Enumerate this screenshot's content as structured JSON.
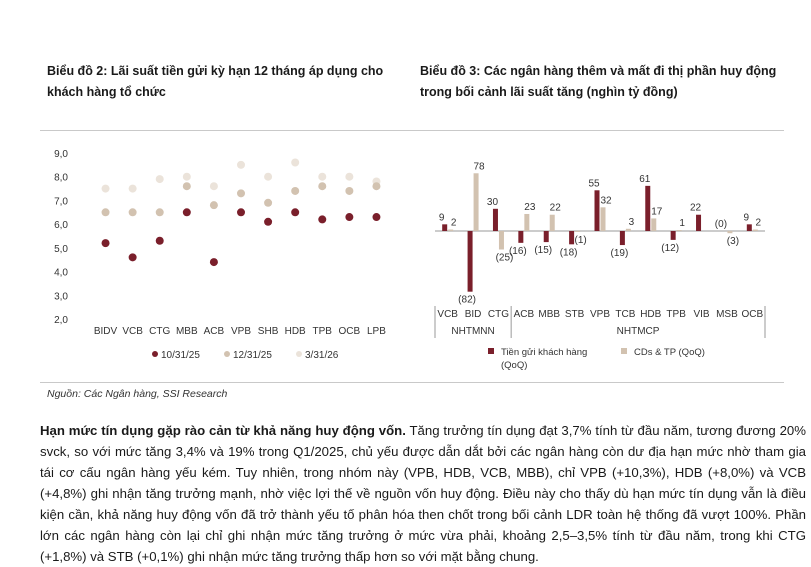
{
  "chart_data": [
    {
      "type": "scatter",
      "title": "Biểu đồ 2: Lãi suất tiền gửi kỳ hạn 12 tháng áp dụng cho khách hàng tổ chức",
      "categories": [
        "BIDV",
        "VCB",
        "CTG",
        "MBB",
        "ACB",
        "VPB",
        "SHB",
        "HDB",
        "TPB",
        "OCB",
        "LPB"
      ],
      "y_ticks": [
        "9,0",
        "8,0",
        "7,0",
        "6,0",
        "5,0",
        "4,0",
        "3,0",
        "2,0"
      ],
      "ylim": [
        2,
        9
      ],
      "legend_position": "bottom",
      "series": [
        {
          "name": "10/31/25",
          "color": "#7a1f2b",
          "values": [
            5.2,
            4.6,
            5.3,
            6.5,
            4.4,
            6.5,
            6.1,
            6.5,
            6.2,
            6.3,
            6.3
          ]
        },
        {
          "name": "12/31/25",
          "color": "#d2c2b0",
          "values": [
            6.5,
            6.5,
            6.5,
            7.6,
            6.8,
            7.3,
            6.9,
            7.4,
            7.6,
            7.4,
            7.6
          ]
        },
        {
          "name": "3/31/26",
          "color": "#ebe3da",
          "values": [
            7.5,
            7.5,
            7.9,
            8.0,
            7.6,
            8.5,
            8.0,
            8.6,
            8.0,
            8.0,
            7.8
          ]
        }
      ]
    },
    {
      "type": "bar",
      "title": "Biểu đồ 3: Các ngân hàng thêm và mất đi thị phần huy động trong bối cảnh lãi suất tăng (nghìn tỷ đồng)",
      "categories": [
        "VCB",
        "BID",
        "CTG",
        "ACB",
        "MBB",
        "STB",
        "VPB",
        "TCB",
        "HDB",
        "TPB",
        "VIB",
        "MSB",
        "OCB"
      ],
      "groups": [
        {
          "label": "NHTMNN",
          "count": 3
        },
        {
          "label": "NHTMCP",
          "count": 10
        }
      ],
      "legend_position": "bottom",
      "series": [
        {
          "name": "Tiền gửi khách hàng (QoQ)",
          "color": "#7a1f2b",
          "values": [
            9,
            -82,
            30,
            -16,
            -15,
            -18,
            55,
            -19,
            61,
            -12,
            22,
            0,
            9
          ],
          "labels": [
            "9",
            "(82)",
            "30",
            "(16)",
            "(15)",
            "(18)",
            "55",
            "(19)",
            "61",
            "(12)",
            "22",
            "(0)",
            "9"
          ]
        },
        {
          "name": "CDs & TP (QoQ)",
          "color": "#d2c2b0",
          "values": [
            2,
            78,
            -25,
            23,
            22,
            -1,
            32,
            3,
            17,
            1,
            0,
            -3,
            2
          ],
          "labels": [
            "2",
            "78",
            "(25)",
            "23",
            "22",
            "(1)",
            "32",
            "3",
            "17",
            "1",
            "",
            "(3)",
            "2"
          ]
        }
      ],
      "legend_labels": {
        "s1": "Tiền gửi khách hàng",
        "s1_sub": "(QoQ)",
        "s2": "CDs & TP (QoQ)"
      }
    }
  ],
  "source": "Nguồn: Các Ngân hàng, SSI Research",
  "paragraph": {
    "lead": "Hạn mức tín dụng gặp rào cản từ khả năng huy động vốn.",
    "body": " Tăng trưởng tín dụng đạt 3,7% tính từ đầu năm, tương đương 20% svck, so với mức tăng 3,4% và 19% trong Q1/2025, chủ yếu được dẫn dắt bởi các ngân hàng còn dư địa hạn mức nhờ tham gia tái cơ cấu ngân hàng yếu kém. Tuy nhiên, trong nhóm này (VPB, HDB, VCB, MBB), chỉ VPB (+10,3%), HDB (+8,0%) và VCB (+4,8%) ghi nhận tăng trưởng mạnh, nhờ việc lợi thế về nguồn vốn huy động. Điều này cho thấy dù hạn mức tín dụng vẫn là điều kiện cần, khả năng huy động vốn đã trở thành yếu tố phân hóa then chốt trong bối cảnh LDR toàn hệ thống đã vượt 100%. Phần lớn các ngân hàng còn lại chỉ ghi nhận mức tăng trưởng ở mức vừa phải, khoảng 2,5–3,5% tính từ đầu năm, trong khi CTG (+1,8%) và STB (+0,1%) ghi nhận mức tăng trưởng thấp hơn so với mặt bằng chung."
  }
}
